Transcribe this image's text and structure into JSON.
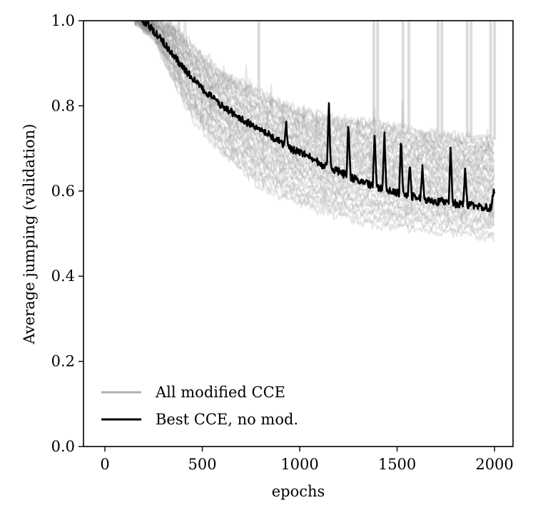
{
  "chart_data": {
    "type": "line",
    "xlabel": "epochs",
    "ylabel": "Average jumping (validation)",
    "xlim": [
      -110,
      2095
    ],
    "ylim": [
      0.0,
      1.0
    ],
    "xticks": [
      "0",
      "500",
      "1000",
      "1500",
      "2000"
    ],
    "yticks": [
      "0.0",
      "0.2",
      "0.4",
      "0.6",
      "0.8",
      "1.0"
    ],
    "grid": false,
    "legend_position": "lower-left",
    "series": [
      {
        "name": "All modified CCE",
        "color": "#a0a0a0",
        "style": "many semi-transparent gray runs",
        "band_upper": {
          "x": [
            150,
            250,
            350,
            450,
            600,
            800,
            1000,
            1200,
            1400,
            1600,
            1800,
            2000
          ],
          "y": [
            1.0,
            1.0,
            0.99,
            0.94,
            0.88,
            0.83,
            0.79,
            0.77,
            0.76,
            0.74,
            0.73,
            0.72
          ]
        },
        "band_lower": {
          "x": [
            150,
            250,
            350,
            450,
            600,
            800,
            1000,
            1200,
            1400,
            1600,
            1800,
            2000
          ],
          "y": [
            1.0,
            0.96,
            0.86,
            0.77,
            0.69,
            0.61,
            0.57,
            0.54,
            0.52,
            0.51,
            0.5,
            0.49
          ]
        },
        "spike_epochs": [
          160,
          330,
          380,
          790,
          1380,
          1400,
          1530,
          1560,
          1710,
          1730,
          1860,
          1880,
          1980,
          2000
        ]
      },
      {
        "name": "Best CCE, no mod.",
        "color": "#000000",
        "x": [
          190,
          220,
          260,
          300,
          350,
          400,
          450,
          500,
          550,
          600,
          650,
          700,
          750,
          800,
          850,
          900,
          950,
          1000,
          1050,
          1100,
          1150,
          1200,
          1250,
          1300,
          1350,
          1400,
          1450,
          1500,
          1550,
          1600,
          1650,
          1700,
          1750,
          1800,
          1850,
          1900,
          1950,
          2000
        ],
        "y": [
          1.0,
          0.99,
          0.97,
          0.95,
          0.92,
          0.89,
          0.865,
          0.84,
          0.82,
          0.8,
          0.785,
          0.77,
          0.755,
          0.74,
          0.73,
          0.715,
          0.7,
          0.69,
          0.68,
          0.665,
          0.655,
          0.645,
          0.635,
          0.625,
          0.615,
          0.61,
          0.6,
          0.595,
          0.59,
          0.585,
          0.58,
          0.575,
          0.575,
          0.57,
          0.568,
          0.565,
          0.562,
          0.56
        ],
        "peaks": [
          {
            "x": 930,
            "y": 0.76
          },
          {
            "x": 1150,
            "y": 0.805
          },
          {
            "x": 1250,
            "y": 0.76
          },
          {
            "x": 1385,
            "y": 0.745
          },
          {
            "x": 1435,
            "y": 0.73
          },
          {
            "x": 1520,
            "y": 0.73
          },
          {
            "x": 1565,
            "y": 0.67
          },
          {
            "x": 1630,
            "y": 0.66
          },
          {
            "x": 1775,
            "y": 0.71
          },
          {
            "x": 1850,
            "y": 0.655
          },
          {
            "x": 1995,
            "y": 0.605
          }
        ]
      }
    ]
  }
}
